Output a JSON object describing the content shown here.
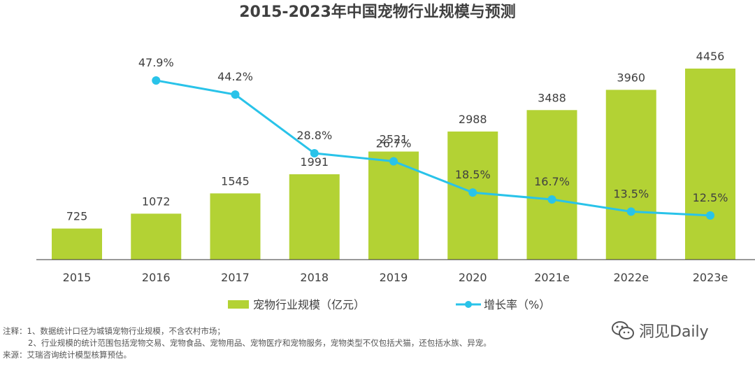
{
  "chart_data": {
    "type": "bar",
    "title": "2015-2023年中国宠物行业规模与预测",
    "categories": [
      "2015",
      "2016",
      "2017",
      "2018",
      "2019",
      "2020",
      "2021e",
      "2022e",
      "2023e"
    ],
    "series": [
      {
        "name": "宠物行业规模（亿元）",
        "type": "bar",
        "color": "#b3d234",
        "values": [
          725,
          1072,
          1545,
          1991,
          2521,
          2988,
          3488,
          3960,
          4456
        ]
      },
      {
        "name": "增长率（%）",
        "type": "line",
        "color": "#29c3e9",
        "values": [
          null,
          47.9,
          44.2,
          28.8,
          26.7,
          18.5,
          16.7,
          13.5,
          12.5
        ],
        "labels": [
          null,
          "47.9%",
          "44.2%",
          "28.8%",
          "26.7%",
          "18.5%",
          "16.7%",
          "13.5%",
          "12.5%"
        ]
      }
    ],
    "bar_ylim": [
      0,
      4700
    ],
    "line_ylim": [
      0,
      60
    ]
  },
  "notes": {
    "line1": "注释：1、数据统计口径为城镇宠物行业规模，不含农村市场；",
    "line2": "2、行业规模的统计范围包括宠物交易、宠物食品、宠物用品、宠物医疗和宠物服务，宠物类型不仅包括犬猫，还包括水族、异宠。",
    "line3": "来源：艾瑞咨询统计模型核算预估。"
  },
  "watermark": {
    "text": "洞见Daily",
    "icon": "wechat-icon"
  }
}
